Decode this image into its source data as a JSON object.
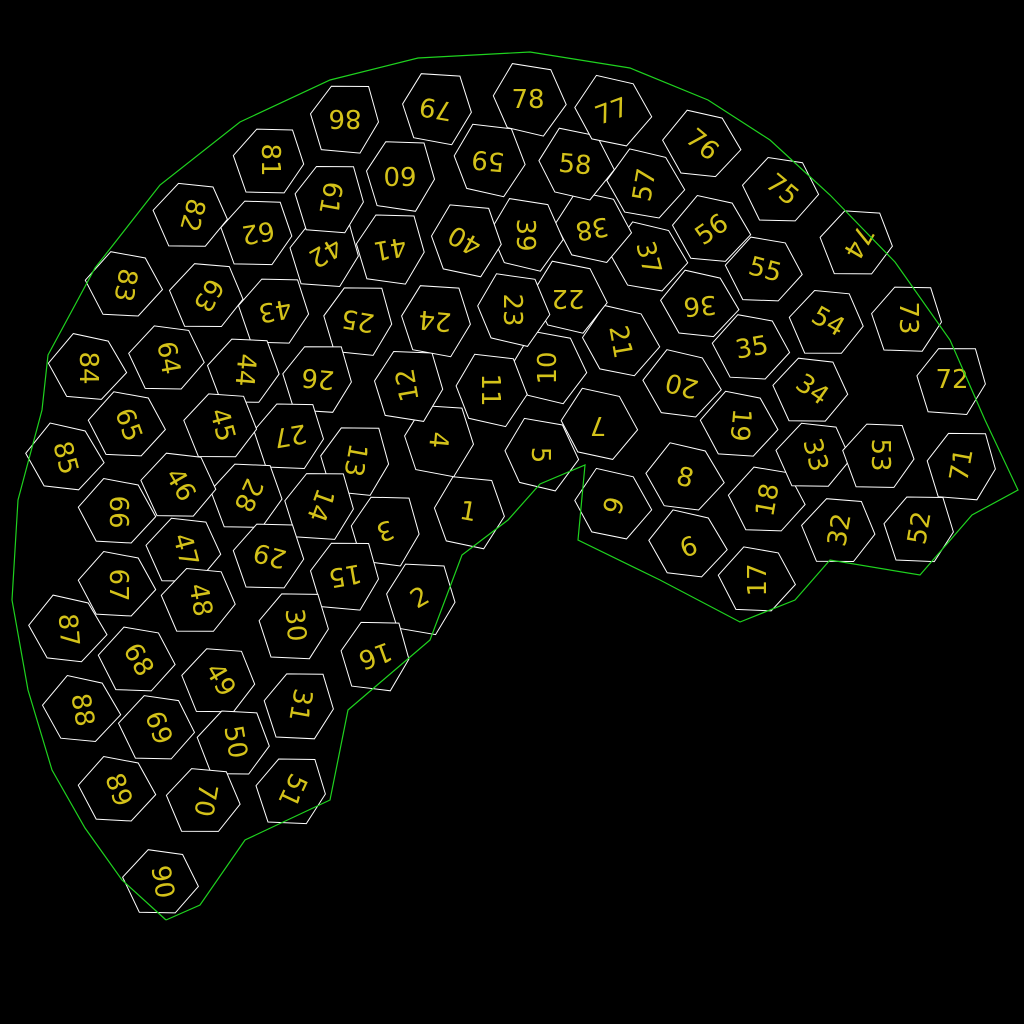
{
  "puzzle": {
    "cells": [
      {
        "label": "1"
      },
      {
        "label": "2"
      },
      {
        "label": "3"
      },
      {
        "label": "4"
      },
      {
        "label": "5"
      },
      {
        "label": "6"
      },
      {
        "label": "7"
      },
      {
        "label": "8"
      },
      {
        "label": "9"
      },
      {
        "label": "10"
      },
      {
        "label": "11"
      },
      {
        "label": "12"
      },
      {
        "label": "13"
      },
      {
        "label": "14"
      },
      {
        "label": "15"
      },
      {
        "label": "16"
      },
      {
        "label": "17"
      },
      {
        "label": "18"
      },
      {
        "label": "19"
      },
      {
        "label": "20"
      },
      {
        "label": "21"
      },
      {
        "label": "22"
      },
      {
        "label": "23"
      },
      {
        "label": "24"
      },
      {
        "label": "25"
      },
      {
        "label": "26"
      },
      {
        "label": "27"
      },
      {
        "label": "28"
      },
      {
        "label": "29"
      },
      {
        "label": "30"
      },
      {
        "label": "31"
      },
      {
        "label": "32"
      },
      {
        "label": "33"
      },
      {
        "label": "34"
      },
      {
        "label": "35"
      },
      {
        "label": "36"
      },
      {
        "label": "37"
      },
      {
        "label": "38"
      },
      {
        "label": "39"
      },
      {
        "label": "40"
      },
      {
        "label": "41"
      },
      {
        "label": "42"
      },
      {
        "label": "43"
      },
      {
        "label": "44"
      },
      {
        "label": "45"
      },
      {
        "label": "46"
      },
      {
        "label": "47"
      },
      {
        "label": "48"
      },
      {
        "label": "49"
      },
      {
        "label": "50"
      },
      {
        "label": "51"
      },
      {
        "label": "52"
      },
      {
        "label": "53"
      },
      {
        "label": "54"
      },
      {
        "label": "55"
      },
      {
        "label": "56"
      },
      {
        "label": "57"
      },
      {
        "label": "58"
      },
      {
        "label": "59"
      },
      {
        "label": "60"
      },
      {
        "label": "61"
      },
      {
        "label": "62"
      },
      {
        "label": "63"
      },
      {
        "label": "64"
      },
      {
        "label": "65"
      },
      {
        "label": "66"
      },
      {
        "label": "67"
      },
      {
        "label": "68"
      },
      {
        "label": "69"
      },
      {
        "label": "70"
      },
      {
        "label": "71"
      },
      {
        "label": "72"
      },
      {
        "label": "73"
      },
      {
        "label": "74"
      },
      {
        "label": "75"
      },
      {
        "label": "76"
      },
      {
        "label": "77"
      },
      {
        "label": "78"
      },
      {
        "label": "79"
      },
      {
        "label": "80"
      },
      {
        "label": "81"
      },
      {
        "label": "82"
      },
      {
        "label": "83"
      },
      {
        "label": "84"
      },
      {
        "label": "85"
      },
      {
        "label": "86"
      },
      {
        "label": "87"
      },
      {
        "label": "88"
      },
      {
        "label": "89"
      },
      {
        "label": "90"
      }
    ]
  },
  "colors": {
    "background": "#000000",
    "label": "#d4c21a",
    "inner_edge": "#ffffff",
    "outer_edge": "#1fd21f"
  }
}
